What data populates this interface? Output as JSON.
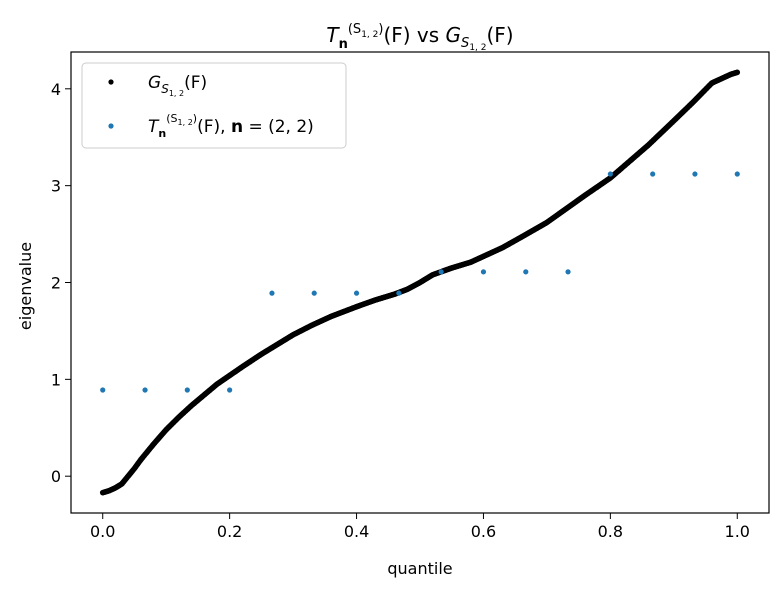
{
  "chart_data": {
    "type": "scatter",
    "title": {
      "t_base": "T",
      "t_sub": "n",
      "t_sup": "(S",
      "t_sup_sub": "1, 2",
      "t_sup_close": ")",
      "t_arg": "(F)",
      "vs": " vs ",
      "g_base": "G",
      "g_sub": "S",
      "g_sub_sub": "1, 2",
      "g_arg": "(F)"
    },
    "xlabel": "quantile",
    "ylabel": "eigenvalue",
    "xlim": [
      -0.05,
      1.05
    ],
    "ylim": [
      -0.38,
      4.38
    ],
    "xticks": [
      0.0,
      0.2,
      0.4,
      0.6,
      0.8,
      1.0
    ],
    "xtick_labels": [
      "0.0",
      "0.2",
      "0.4",
      "0.6",
      "0.8",
      "1.0"
    ],
    "yticks": [
      0,
      1,
      2,
      3,
      4
    ],
    "ytick_labels": [
      "0",
      "1",
      "2",
      "3",
      "4"
    ],
    "grid": false,
    "legend_position": "top-left",
    "colors": {
      "g_series": "#000000",
      "t_series": "#1f77b4"
    },
    "series": [
      {
        "id": "g",
        "legend": {
          "base": "G",
          "sub": "S",
          "sub_sub": "1, 2",
          "arg": "(F)"
        },
        "curve": {
          "x": [
            0.0,
            0.01,
            0.02,
            0.03,
            0.04,
            0.05,
            0.06,
            0.07,
            0.08,
            0.1,
            0.12,
            0.14,
            0.16,
            0.18,
            0.2,
            0.22,
            0.25,
            0.28,
            0.3,
            0.33,
            0.36,
            0.4,
            0.43,
            0.46,
            0.48,
            0.5,
            0.52,
            0.55,
            0.58,
            0.6,
            0.63,
            0.66,
            0.7,
            0.73,
            0.76,
            0.8,
            0.83,
            0.86,
            0.9,
            0.93,
            0.96,
            0.98,
            0.99,
            1.0
          ],
          "y": [
            -0.17,
            -0.15,
            -0.12,
            -0.08,
            0.0,
            0.08,
            0.17,
            0.25,
            0.33,
            0.48,
            0.61,
            0.73,
            0.84,
            0.95,
            1.04,
            1.13,
            1.26,
            1.38,
            1.46,
            1.56,
            1.65,
            1.75,
            1.82,
            1.88,
            1.93,
            2.0,
            2.08,
            2.15,
            2.21,
            2.27,
            2.36,
            2.47,
            2.62,
            2.76,
            2.9,
            3.08,
            3.25,
            3.42,
            3.67,
            3.86,
            4.06,
            4.12,
            4.15,
            4.17
          ]
        }
      },
      {
        "id": "t",
        "legend": {
          "base": "T",
          "sub": "n",
          "sup": "(S",
          "sup_sub": "1, 2",
          "sup_close": ")",
          "arg": "(F), ",
          "n_bold": "n",
          "n_val": " = (2, 2)"
        },
        "x": [
          0.0,
          0.0667,
          0.1333,
          0.2,
          0.2667,
          0.3333,
          0.4,
          0.4667,
          0.5333,
          0.6,
          0.6667,
          0.7333,
          0.8,
          0.8667,
          0.9333,
          1.0
        ],
        "y": [
          0.89,
          0.89,
          0.89,
          0.89,
          1.89,
          1.89,
          1.89,
          1.89,
          2.11,
          2.11,
          2.11,
          2.11,
          3.12,
          3.12,
          3.12,
          3.12
        ]
      }
    ]
  }
}
